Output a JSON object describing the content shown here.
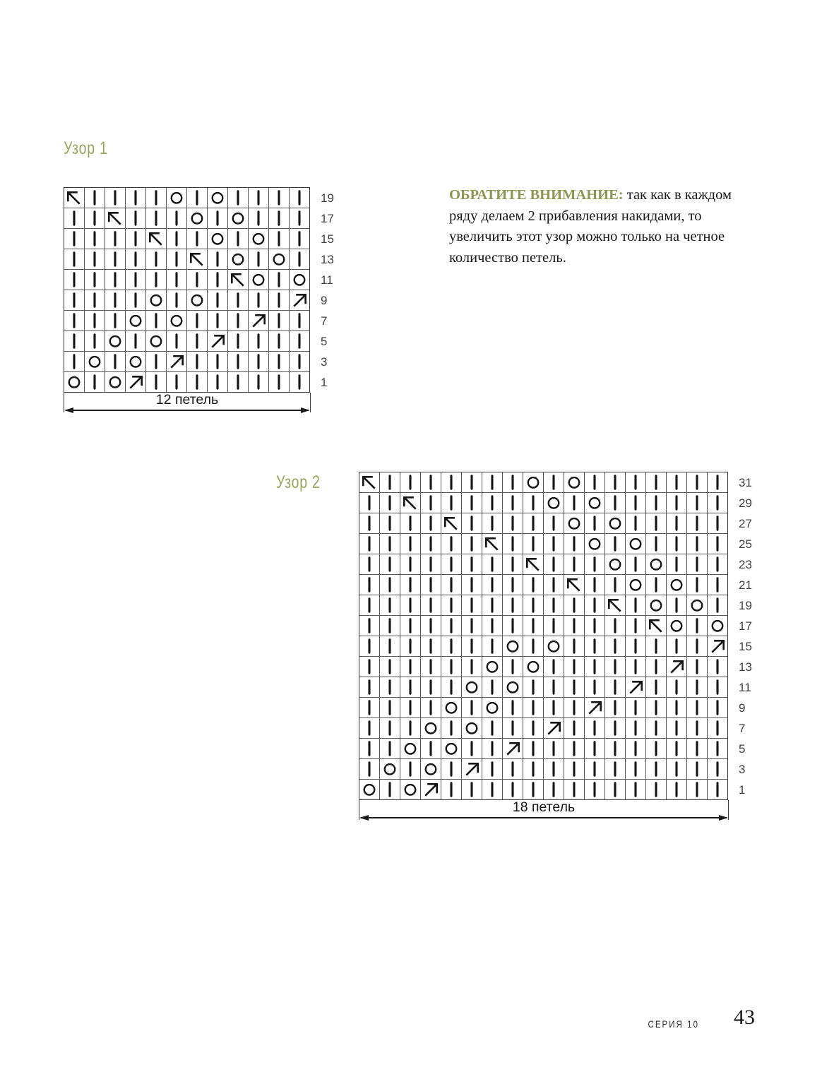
{
  "colors": {
    "title_olive": "#9aa45e",
    "note_heading_olive": "#8e9750",
    "ink": "#151515",
    "grid_line": "#585858",
    "row_number": "#3f3f3f"
  },
  "note": {
    "heading": "ОБРАТИТЕ ВНИМАНИЕ:",
    "body": " так как в каждом ряду делаем 2 прибавления накидами, то увеличить этот узор можно только на четное количество петель."
  },
  "footer": {
    "series": "СЕРИЯ 10",
    "page_number": "43"
  },
  "symbols": {
    "|": "knit-bar",
    "O": "yarn-over-circle",
    "L": "arrow-up-left",
    "R": "arrow-up-right"
  },
  "charts": [
    {
      "title": "Узор 1",
      "stitch_count_label": "12 петель",
      "columns": 12,
      "rows": [
        {
          "num": "19",
          "cells": "L||||O|O||||"
        },
        {
          "num": "17",
          "cells": "||L|||O|O|||"
        },
        {
          "num": "15",
          "cells": "||||L||O|O||"
        },
        {
          "num": "13",
          "cells": "||||||L|O|O|"
        },
        {
          "num": "11",
          "cells": "||||||||LO|O"
        },
        {
          "num": "9",
          "cells": "||||O|O||||R"
        },
        {
          "num": "7",
          "cells": "|||O|O|||R||"
        },
        {
          "num": "5",
          "cells": "||O|O||R||||"
        },
        {
          "num": "3",
          "cells": "|O|O|R||||||"
        },
        {
          "num": "1",
          "cells": "O|OR||||||||"
        }
      ]
    },
    {
      "title": "Узор 2",
      "stitch_count_label": "18 петель",
      "columns": 18,
      "rows": [
        {
          "num": "31",
          "cells": "L|||||||O|O|||||||"
        },
        {
          "num": "29",
          "cells": "||L||||||O|O||||||"
        },
        {
          "num": "27",
          "cells": "||||L|||||O|O|||||"
        },
        {
          "num": "25",
          "cells": "||||||L||||O|O||||"
        },
        {
          "num": "23",
          "cells": "||||||||L|||O|O|||"
        },
        {
          "num": "21",
          "cells": "||||||||||L||O|O||"
        },
        {
          "num": "19",
          "cells": "||||||||||||L|O|O|"
        },
        {
          "num": "17",
          "cells": "||||||||||||||LO|O"
        },
        {
          "num": "15",
          "cells": "|||||||O|O|||||||R"
        },
        {
          "num": "13",
          "cells": "||||||O|O||||||R||"
        },
        {
          "num": "11",
          "cells": "|||||O|O|||||R||||"
        },
        {
          "num": "9",
          "cells": "||||O|O||||R||||||"
        },
        {
          "num": "7",
          "cells": "|||O|O|||R||||||||"
        },
        {
          "num": "5",
          "cells": "||O|O||R||||||||||"
        },
        {
          "num": "3",
          "cells": "|O|O|R||||||||||||"
        },
        {
          "num": "1",
          "cells": "O|OR||||||||||||||"
        }
      ]
    }
  ]
}
